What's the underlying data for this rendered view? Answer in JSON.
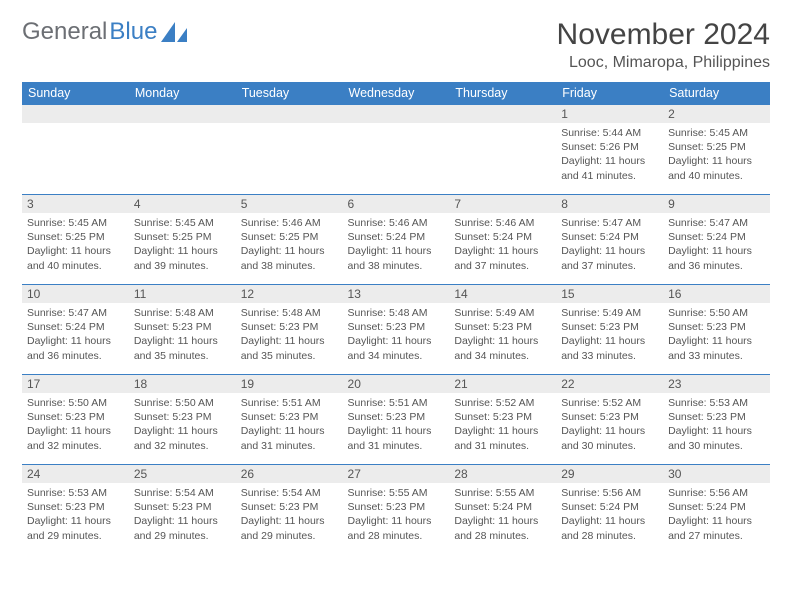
{
  "logo": {
    "text1": "General",
    "text2": "Blue"
  },
  "title": "November 2024",
  "location": "Looc, Mimaropa, Philippines",
  "colors": {
    "header_bg": "#3b7fc4",
    "header_text": "#ffffff",
    "daynum_bg": "#ececec",
    "text": "#555555",
    "border": "#3b7fc4",
    "page_bg": "#ffffff"
  },
  "fonts": {
    "title_size": 30,
    "location_size": 16,
    "dayhead_size": 12.5,
    "daynum_size": 12,
    "info_size": 10.5
  },
  "day_headers": [
    "Sunday",
    "Monday",
    "Tuesday",
    "Wednesday",
    "Thursday",
    "Friday",
    "Saturday"
  ],
  "weeks": [
    [
      null,
      null,
      null,
      null,
      null,
      {
        "n": "1",
        "sunrise": "5:44 AM",
        "sunset": "5:26 PM",
        "daylight": "11 hours and 41 minutes."
      },
      {
        "n": "2",
        "sunrise": "5:45 AM",
        "sunset": "5:25 PM",
        "daylight": "11 hours and 40 minutes."
      }
    ],
    [
      {
        "n": "3",
        "sunrise": "5:45 AM",
        "sunset": "5:25 PM",
        "daylight": "11 hours and 40 minutes."
      },
      {
        "n": "4",
        "sunrise": "5:45 AM",
        "sunset": "5:25 PM",
        "daylight": "11 hours and 39 minutes."
      },
      {
        "n": "5",
        "sunrise": "5:46 AM",
        "sunset": "5:25 PM",
        "daylight": "11 hours and 38 minutes."
      },
      {
        "n": "6",
        "sunrise": "5:46 AM",
        "sunset": "5:24 PM",
        "daylight": "11 hours and 38 minutes."
      },
      {
        "n": "7",
        "sunrise": "5:46 AM",
        "sunset": "5:24 PM",
        "daylight": "11 hours and 37 minutes."
      },
      {
        "n": "8",
        "sunrise": "5:47 AM",
        "sunset": "5:24 PM",
        "daylight": "11 hours and 37 minutes."
      },
      {
        "n": "9",
        "sunrise": "5:47 AM",
        "sunset": "5:24 PM",
        "daylight": "11 hours and 36 minutes."
      }
    ],
    [
      {
        "n": "10",
        "sunrise": "5:47 AM",
        "sunset": "5:24 PM",
        "daylight": "11 hours and 36 minutes."
      },
      {
        "n": "11",
        "sunrise": "5:48 AM",
        "sunset": "5:23 PM",
        "daylight": "11 hours and 35 minutes."
      },
      {
        "n": "12",
        "sunrise": "5:48 AM",
        "sunset": "5:23 PM",
        "daylight": "11 hours and 35 minutes."
      },
      {
        "n": "13",
        "sunrise": "5:48 AM",
        "sunset": "5:23 PM",
        "daylight": "11 hours and 34 minutes."
      },
      {
        "n": "14",
        "sunrise": "5:49 AM",
        "sunset": "5:23 PM",
        "daylight": "11 hours and 34 minutes."
      },
      {
        "n": "15",
        "sunrise": "5:49 AM",
        "sunset": "5:23 PM",
        "daylight": "11 hours and 33 minutes."
      },
      {
        "n": "16",
        "sunrise": "5:50 AM",
        "sunset": "5:23 PM",
        "daylight": "11 hours and 33 minutes."
      }
    ],
    [
      {
        "n": "17",
        "sunrise": "5:50 AM",
        "sunset": "5:23 PM",
        "daylight": "11 hours and 32 minutes."
      },
      {
        "n": "18",
        "sunrise": "5:50 AM",
        "sunset": "5:23 PM",
        "daylight": "11 hours and 32 minutes."
      },
      {
        "n": "19",
        "sunrise": "5:51 AM",
        "sunset": "5:23 PM",
        "daylight": "11 hours and 31 minutes."
      },
      {
        "n": "20",
        "sunrise": "5:51 AM",
        "sunset": "5:23 PM",
        "daylight": "11 hours and 31 minutes."
      },
      {
        "n": "21",
        "sunrise": "5:52 AM",
        "sunset": "5:23 PM",
        "daylight": "11 hours and 31 minutes."
      },
      {
        "n": "22",
        "sunrise": "5:52 AM",
        "sunset": "5:23 PM",
        "daylight": "11 hours and 30 minutes."
      },
      {
        "n": "23",
        "sunrise": "5:53 AM",
        "sunset": "5:23 PM",
        "daylight": "11 hours and 30 minutes."
      }
    ],
    [
      {
        "n": "24",
        "sunrise": "5:53 AM",
        "sunset": "5:23 PM",
        "daylight": "11 hours and 29 minutes."
      },
      {
        "n": "25",
        "sunrise": "5:54 AM",
        "sunset": "5:23 PM",
        "daylight": "11 hours and 29 minutes."
      },
      {
        "n": "26",
        "sunrise": "5:54 AM",
        "sunset": "5:23 PM",
        "daylight": "11 hours and 29 minutes."
      },
      {
        "n": "27",
        "sunrise": "5:55 AM",
        "sunset": "5:23 PM",
        "daylight": "11 hours and 28 minutes."
      },
      {
        "n": "28",
        "sunrise": "5:55 AM",
        "sunset": "5:24 PM",
        "daylight": "11 hours and 28 minutes."
      },
      {
        "n": "29",
        "sunrise": "5:56 AM",
        "sunset": "5:24 PM",
        "daylight": "11 hours and 28 minutes."
      },
      {
        "n": "30",
        "sunrise": "5:56 AM",
        "sunset": "5:24 PM",
        "daylight": "11 hours and 27 minutes."
      }
    ]
  ]
}
